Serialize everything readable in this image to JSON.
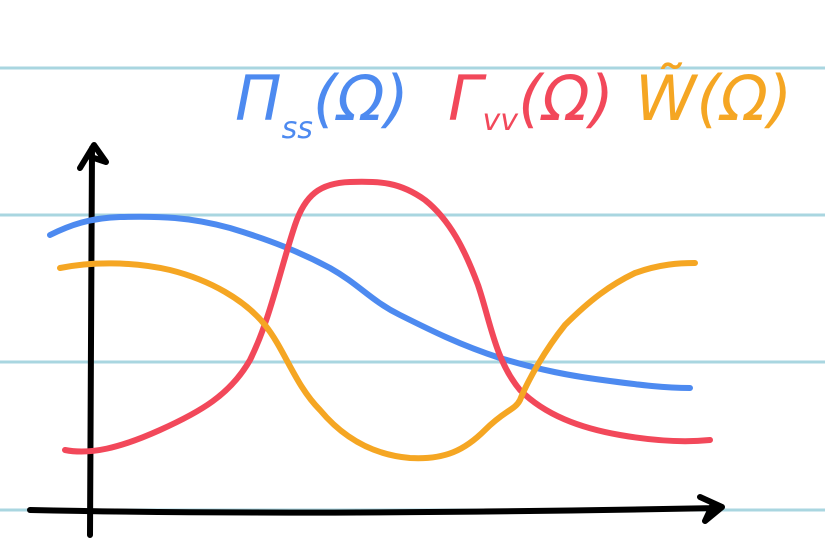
{
  "legend": [
    {
      "symbol": "Π",
      "subscript": "ss",
      "argument": "(Ω)"
    },
    {
      "symbol": "Γ",
      "subscript": "vv",
      "argument": "(Ω)"
    },
    {
      "symbol": "W̃",
      "argument": "(Ω)"
    }
  ]
}
